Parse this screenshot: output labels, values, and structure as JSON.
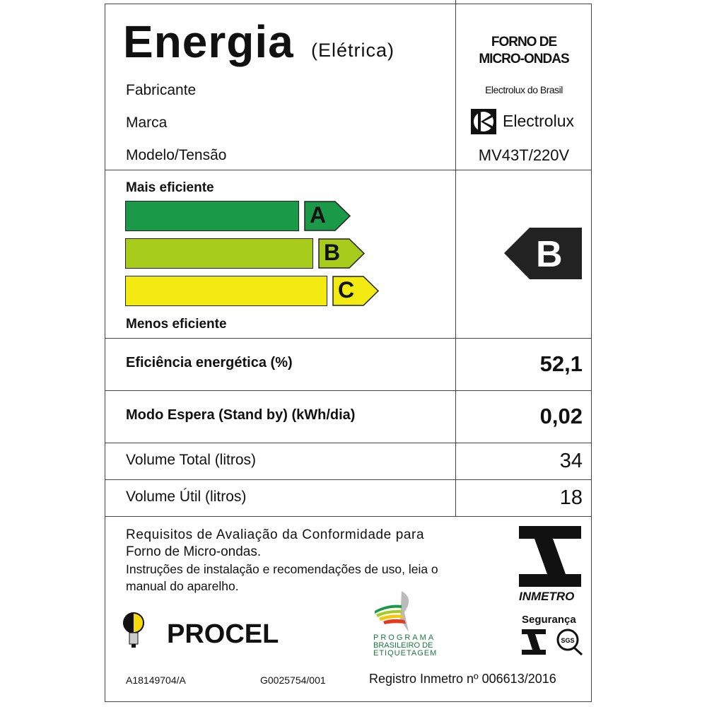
{
  "header": {
    "title": "Energia",
    "subtitle": "(Elétrica)",
    "product": [
      "FORNO DE",
      "MICRO-ONDAS"
    ]
  },
  "info": [
    {
      "label": "Fabricante",
      "value": "Electrolux do Brasil"
    },
    {
      "label": "Marca",
      "value": "Electrolux"
    },
    {
      "label": "Modelo/Tensão",
      "value": "MV43T/220V"
    }
  ],
  "scale": {
    "top_label": "Mais eficiente",
    "bottom_label": "Menos eficiente",
    "classes": [
      {
        "letter": "A",
        "color": "#1a9a48"
      },
      {
        "letter": "B",
        "color": "#a8cc1c"
      },
      {
        "letter": "C",
        "color": "#f2ea10"
      }
    ],
    "rating": "B",
    "rating_color": "#222222"
  },
  "rows": [
    {
      "label": "Eficiência energética (%)",
      "value": "52,1",
      "bold": true
    },
    {
      "label": "Modo Espera (Stand by) (kWh/dia)",
      "value": "0,02",
      "bold": true
    },
    {
      "label": "Volume Total (litros)",
      "value": "34",
      "bold": false
    },
    {
      "label": "Volume Útil (litros)",
      "value": "18",
      "bold": false
    }
  ],
  "footer": {
    "req1": "Requisitos de Avaliação da Conformidade para",
    "req2": "Forno de Micro-ondas.",
    "instr1": "Instruções de instalação e recomendações de uso, leia o",
    "instr2": "manual do aparelho.",
    "inmetro": "INMETRO",
    "seguranca": "Segurança",
    "sgs": "SGS",
    "procel": "PROCEL",
    "pbe": [
      "PROGRAMA",
      "BRASILEIRO DE",
      "ETIQUETAGEM"
    ],
    "code1": "A18149704/A",
    "code2": "G0025754/001",
    "registro": "Registro Inmetro nº 006613/2016"
  }
}
